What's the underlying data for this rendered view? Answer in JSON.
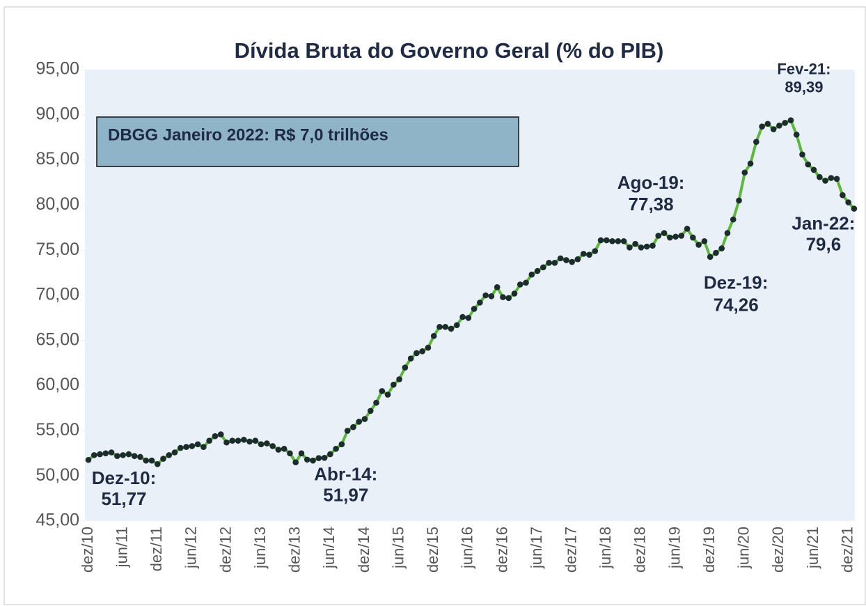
{
  "chart_data": {
    "type": "line",
    "title": "Dívida Bruta do Governo Geral (% do PIB)",
    "annotation": "DBGG Janeiro 2022: R$ 7,0 trilhões",
    "categories": [
      "dez/10",
      null,
      null,
      null,
      null,
      null,
      "jun/11",
      null,
      null,
      null,
      null,
      null,
      "dez/11",
      null,
      null,
      null,
      null,
      null,
      "jun/12",
      null,
      null,
      null,
      null,
      null,
      "dez/12",
      null,
      null,
      null,
      null,
      null,
      "jun/13",
      null,
      null,
      null,
      null,
      null,
      "dez/13",
      null,
      null,
      null,
      null,
      null,
      "jun/14",
      null,
      null,
      null,
      null,
      null,
      "dez/14",
      null,
      null,
      null,
      null,
      null,
      "jun/15",
      null,
      null,
      null,
      null,
      null,
      "dez/15",
      null,
      null,
      null,
      null,
      null,
      "jun/16",
      null,
      null,
      null,
      null,
      null,
      "dez/16",
      null,
      null,
      null,
      null,
      null,
      "jun/17",
      null,
      null,
      null,
      null,
      null,
      "dez/17",
      null,
      null,
      null,
      null,
      null,
      "jun/18",
      null,
      null,
      null,
      null,
      null,
      "dez/18",
      null,
      null,
      null,
      null,
      null,
      "jun/19",
      null,
      null,
      null,
      null,
      null,
      "dez/19",
      null,
      null,
      null,
      null,
      null,
      "jun/20",
      null,
      null,
      null,
      null,
      null,
      "dez/20",
      null,
      null,
      null,
      null,
      null,
      "jun/21",
      null,
      null,
      null,
      null,
      null,
      "dez/21",
      null
    ],
    "series": [
      {
        "color": "#5cb83a",
        "marker_color": "#1c2b2b",
        "values": [
          51.77,
          52.3,
          52.4,
          52.5,
          52.6,
          52.2,
          52.3,
          52.4,
          52.2,
          52.1,
          51.7,
          51.7,
          51.3,
          51.9,
          52.3,
          52.6,
          53.1,
          53.2,
          53.3,
          53.5,
          53.2,
          53.9,
          54.4,
          54.6,
          53.7,
          53.9,
          53.9,
          54.0,
          53.8,
          53.9,
          53.5,
          53.6,
          53.3,
          52.9,
          53.0,
          52.5,
          51.5,
          52.5,
          51.8,
          51.7,
          51.97,
          52.0,
          52.4,
          53.0,
          53.5,
          55.0,
          55.4,
          56.0,
          56.3,
          57.2,
          58.1,
          59.4,
          59.0,
          60.1,
          60.7,
          62.0,
          63.0,
          63.6,
          63.8,
          64.2,
          65.5,
          66.5,
          66.5,
          66.3,
          66.7,
          67.6,
          67.5,
          68.5,
          69.2,
          70.0,
          69.9,
          70.9,
          69.8,
          69.7,
          70.2,
          71.2,
          71.4,
          72.3,
          72.7,
          73.1,
          73.6,
          73.6,
          74.1,
          73.9,
          73.7,
          74.0,
          74.6,
          74.5,
          74.9,
          76.1,
          76.1,
          76.0,
          76.0,
          76.0,
          75.3,
          75.7,
          75.3,
          75.4,
          75.5,
          76.6,
          76.9,
          76.4,
          76.5,
          76.6,
          77.38,
          76.4,
          75.6,
          76.0,
          74.26,
          74.7,
          75.2,
          76.9,
          78.4,
          80.5,
          83.6,
          84.6,
          87.0,
          88.7,
          89.0,
          88.4,
          88.8,
          89.1,
          89.39,
          87.8,
          85.6,
          84.5,
          83.9,
          83.1,
          82.7,
          83.0,
          82.9,
          81.1,
          80.3,
          79.6
        ],
        "point_labels": {
          "0": "Dez-10:",
          "40": "Abr-14:",
          "104": "Ago-19:",
          "108": "Dez-19:",
          "122": "Fev-21:",
          "133": "Jan-22:"
        },
        "value_labels": {
          "0": "51,77",
          "40": "51,97",
          "104": "77,38",
          "108": "74,26",
          "122": "89,39",
          "133": "79,6"
        }
      }
    ],
    "ylim": [
      45,
      95
    ],
    "yticks": [
      {
        "value": 45,
        "label": "45,00"
      },
      {
        "value": 50,
        "label": "50,00"
      },
      {
        "value": 55,
        "label": "55,00"
      },
      {
        "value": 60,
        "label": "60,00"
      },
      {
        "value": 65,
        "label": "65,00"
      },
      {
        "value": 70,
        "label": "70,00"
      },
      {
        "value": 75,
        "label": "75,00"
      },
      {
        "value": 80,
        "label": "80,00"
      },
      {
        "value": 85,
        "label": "85,00"
      },
      {
        "value": 90,
        "label": "90,00"
      },
      {
        "value": 95,
        "label": "95,00"
      }
    ]
  }
}
